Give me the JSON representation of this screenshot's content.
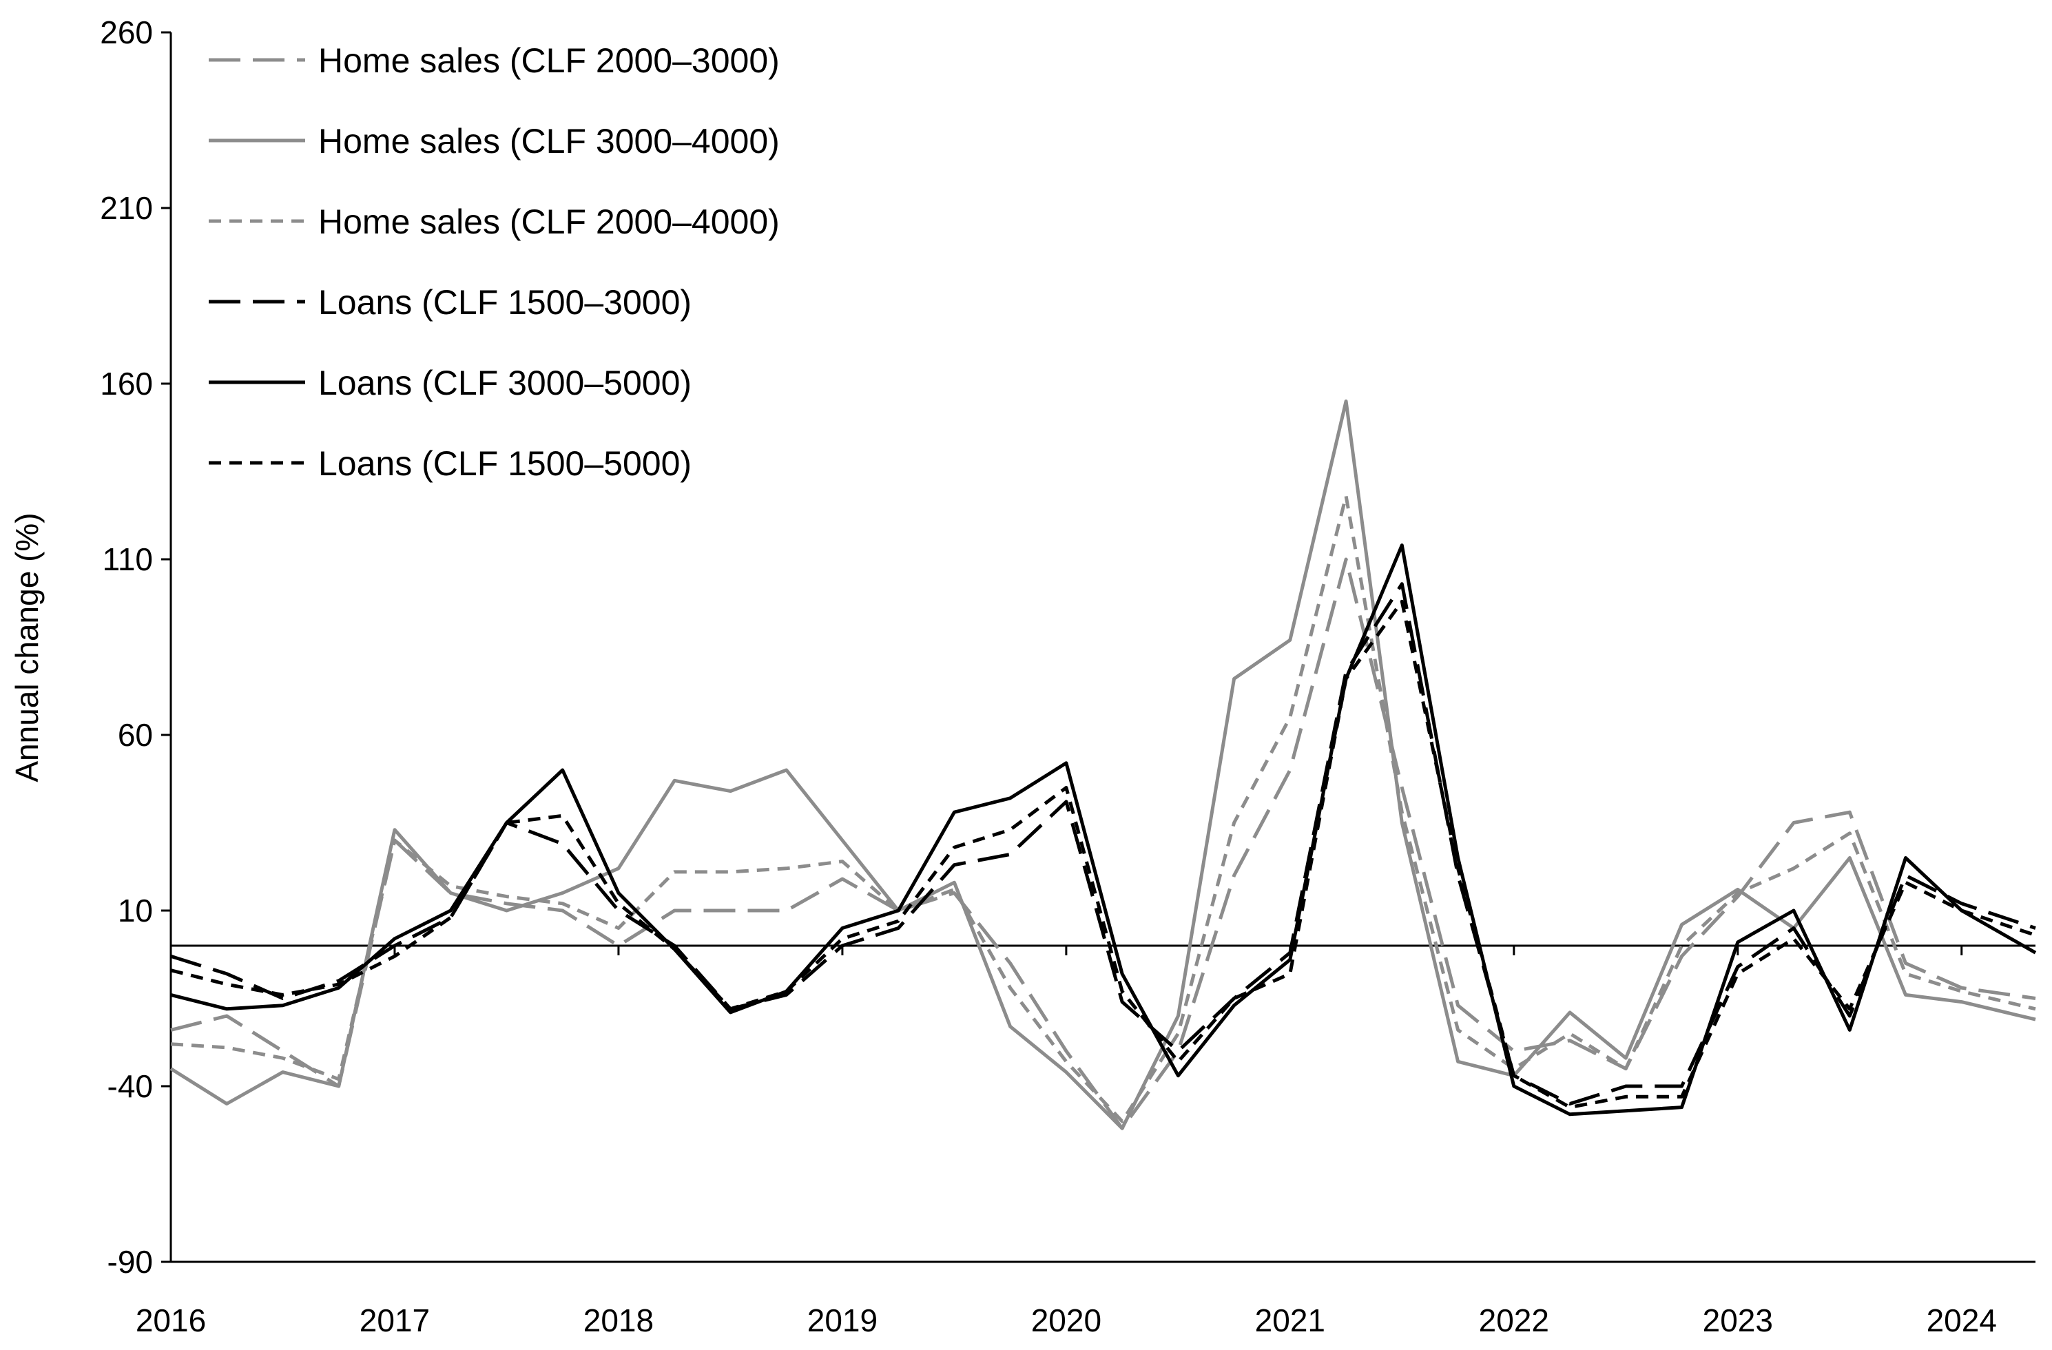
{
  "chart_data": {
    "type": "line",
    "title": "",
    "xlabel": "",
    "ylabel": "Annual change (%)",
    "ylim": [
      -90,
      260
    ],
    "yticks": [
      260,
      210,
      160,
      110,
      60,
      10,
      -40,
      -90
    ],
    "xlim": [
      2016,
      2024.33
    ],
    "xticks": [
      2016,
      2017,
      2018,
      2019,
      2020,
      2021,
      2022,
      2023,
      2024
    ],
    "baseline": 0,
    "legend_position": "top-left",
    "x": [
      2016,
      2016.25,
      2016.5,
      2016.75,
      2017,
      2017.25,
      2017.5,
      2017.75,
      2018,
      2018.25,
      2018.5,
      2018.75,
      2019,
      2019.25,
      2019.5,
      2019.75,
      2020,
      2020.25,
      2020.5,
      2020.75,
      2021,
      2021.25,
      2021.5,
      2021.75,
      2022,
      2022.25,
      2022.5,
      2022.75,
      2023,
      2023.25,
      2023.5,
      2023.75,
      2024,
      2024.33
    ],
    "series": [
      {
        "name": "Home sales (CLF 2000–3000)",
        "color": "#8c8c8c",
        "dash": "long",
        "values": [
          -24,
          -20,
          -30,
          -40,
          30,
          15,
          12,
          10,
          0,
          10,
          10,
          10,
          19,
          10,
          15,
          -5,
          -30,
          -52,
          -30,
          20,
          50,
          110,
          45,
          -17,
          -30,
          -27,
          -35,
          -3,
          14,
          35,
          38,
          -5,
          -12,
          -15
        ]
      },
      {
        "name": "Home sales (CLF 3000–4000)",
        "color": "#8c8c8c",
        "dash": "solid",
        "values": [
          -35,
          -45,
          -36,
          -40,
          33,
          15,
          10,
          15,
          22,
          47,
          44,
          50,
          30,
          10,
          18,
          -23,
          -36,
          -52,
          -20,
          76,
          87,
          155,
          35,
          -33,
          -37,
          -19,
          -32,
          6,
          16,
          5,
          25,
          -14,
          -16,
          -21
        ]
      },
      {
        "name": "Home sales (CLF 2000–4000)",
        "color": "#8c8c8c",
        "dash": "short",
        "values": [
          -28,
          -29,
          -32,
          -38,
          30,
          17,
          14,
          12,
          5,
          21,
          21,
          22,
          24,
          10,
          16,
          -12,
          -33,
          -50,
          -25,
          35,
          65,
          128,
          38,
          -24,
          -35,
          -25,
          -35,
          0,
          15,
          22,
          32,
          -8,
          -13,
          -18
        ]
      },
      {
        "name": "Loans (CLF 1500–3000)",
        "color": "#000000",
        "dash": "long",
        "values": [
          -3,
          -8,
          -15,
          -10,
          0,
          8,
          35,
          29,
          10,
          0,
          -18,
          -14,
          0,
          5,
          23,
          26,
          41,
          -16,
          -30,
          -15,
          -2,
          78,
          103,
          20,
          -37,
          -45,
          -40,
          -40,
          -6,
          5,
          -20,
          20,
          12,
          5
        ]
      },
      {
        "name": "Loans (CLF 3000–5000)",
        "color": "#000000",
        "dash": "solid",
        "values": [
          -14,
          -18,
          -17,
          -12,
          2,
          10,
          35,
          50,
          15,
          -1,
          -19,
          -13,
          5,
          10,
          38,
          42,
          52,
          -8,
          -37,
          -17,
          -4,
          76,
          114,
          25,
          -40,
          -48,
          -47,
          -46,
          1,
          10,
          -24,
          25,
          10,
          -2
        ]
      },
      {
        "name": "Loans (CLF 1500–5000)",
        "color": "#000000",
        "dash": "short",
        "values": [
          -7,
          -11,
          -14,
          -11,
          -3,
          8,
          35,
          37,
          12,
          -1,
          -18,
          -13,
          2,
          7,
          28,
          33,
          45,
          -13,
          -33,
          -15,
          -8,
          76,
          98,
          22,
          -37,
          -46,
          -43,
          -43,
          -8,
          2,
          -18,
          18,
          10,
          3
        ]
      }
    ]
  }
}
